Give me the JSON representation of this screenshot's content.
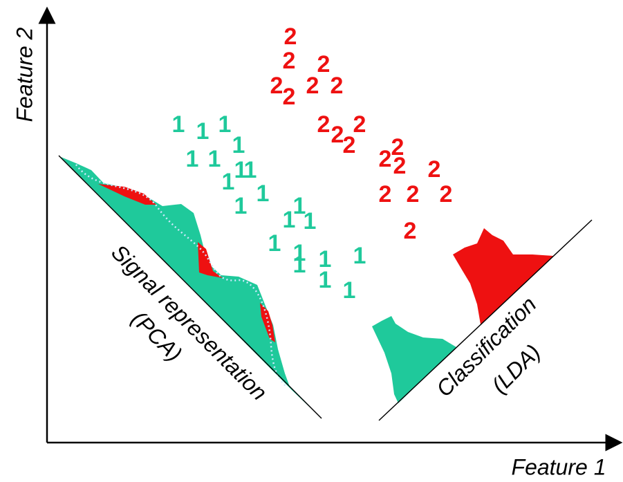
{
  "axes": {
    "x_label": "Feature 1",
    "y_label": "Feature 2"
  },
  "classes": [
    {
      "label": "1",
      "color": "#1fc99b"
    },
    {
      "label": "2",
      "color": "#ee1111"
    }
  ],
  "projections": [
    {
      "title": "Signal representation",
      "method": "(PCA)"
    },
    {
      "title": "Classification",
      "method": "(LDA)"
    }
  ]
}
